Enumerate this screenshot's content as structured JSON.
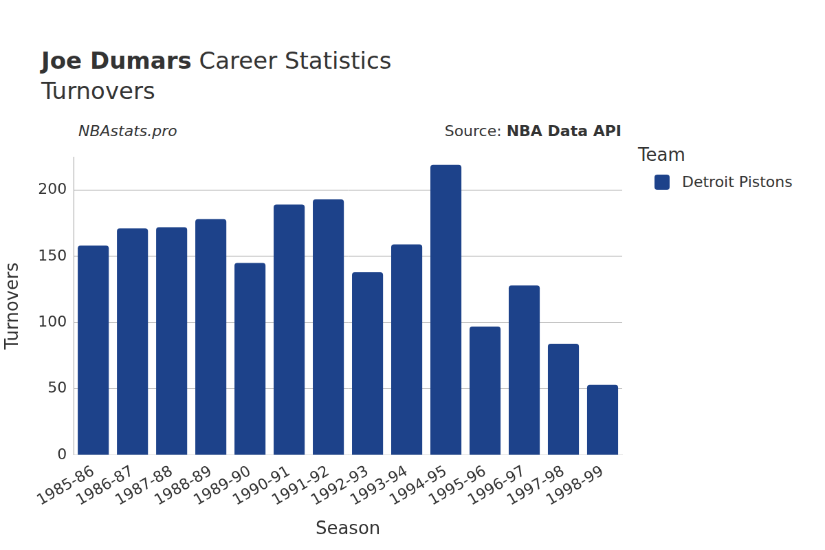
{
  "chart_data": {
    "type": "bar",
    "player": "Joe Dumars",
    "title": "Career Statistics",
    "subtitle": "Turnovers",
    "watermark": "NBAstats.pro",
    "source_label": "Source:",
    "source": "NBA Data API",
    "legend_title": "Team",
    "x_label": "Season",
    "y_label": "Turnovers",
    "categories": [
      "1985-86",
      "1986-87",
      "1987-88",
      "1988-89",
      "1989-90",
      "1990-91",
      "1991-92",
      "1992-93",
      "1993-94",
      "1994-95",
      "1995-96",
      "1996-97",
      "1997-98",
      "1998-99"
    ],
    "series": [
      {
        "name": "Detroit Pistons",
        "color": "#1d428a",
        "values": [
          158,
          171,
          172,
          178,
          145,
          189,
          193,
          138,
          159,
          219,
          97,
          128,
          84,
          53
        ]
      }
    ],
    "ylim": [
      0,
      225
    ],
    "yticks": [
      0,
      50,
      100,
      150,
      200
    ],
    "grid": true
  }
}
